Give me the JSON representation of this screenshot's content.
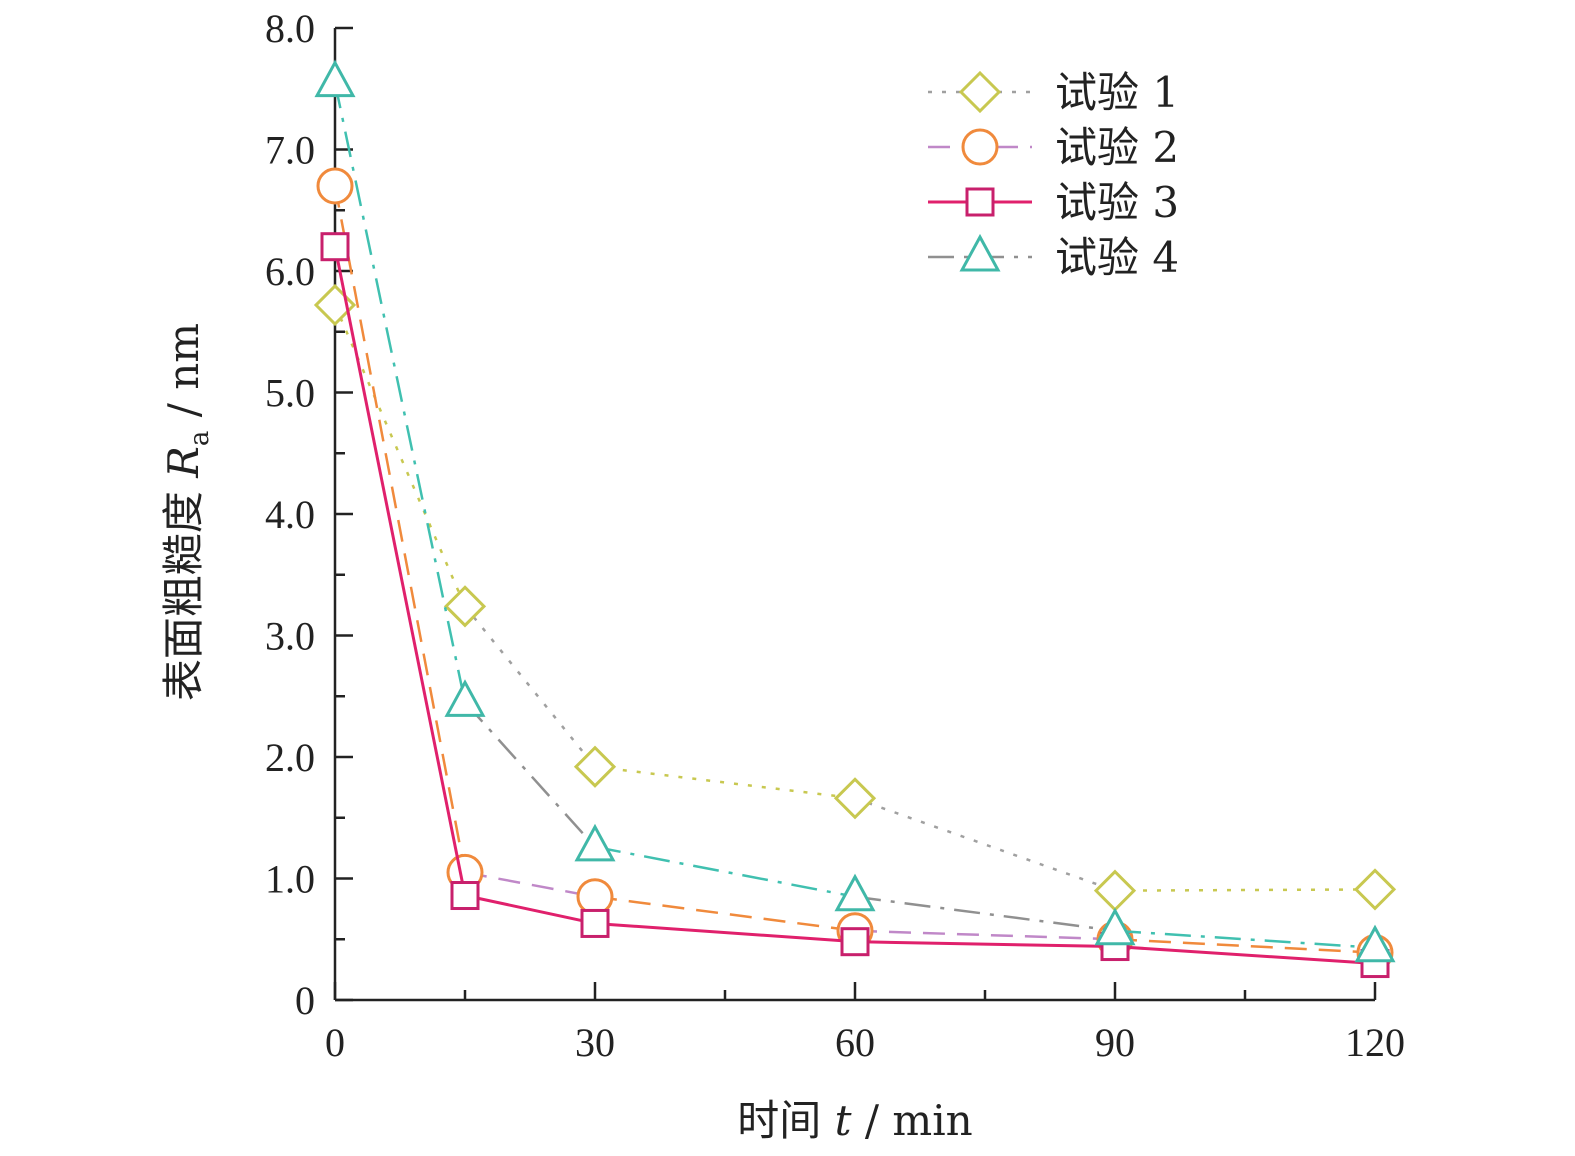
{
  "chart_data": {
    "type": "line",
    "x": [
      0,
      15,
      30,
      60,
      90,
      120
    ],
    "xticks": [
      0,
      30,
      60,
      90,
      120
    ],
    "xtick_labels": [
      "0",
      "30",
      "60",
      "90",
      "120"
    ],
    "yticks": [
      0,
      1,
      2,
      3,
      4,
      5,
      6,
      7,
      8
    ],
    "ytick_labels": [
      "0",
      "1.0",
      "2.0",
      "3.0",
      "4.0",
      "5.0",
      "6.0",
      "7.0",
      "8.0"
    ],
    "xlim": [
      0,
      120
    ],
    "ylim": [
      0,
      8
    ],
    "xlabel": {
      "prefix": "时间 ",
      "var": "t",
      "suffix": " / min"
    },
    "ylabel": {
      "prefix": "表面粗糙度 ",
      "var": "R",
      "sub": "a",
      "suffix": " / nm"
    },
    "legend_position": "top-right",
    "grid": false,
    "series": [
      {
        "name": "试验 1",
        "marker": "diamond",
        "line_style": "dotted",
        "colors": [
          "#c8c850",
          "#a0a0a0"
        ],
        "marker_color": "#c8c850",
        "values": [
          5.72,
          3.24,
          1.92,
          1.66,
          0.9,
          0.91
        ]
      },
      {
        "name": "试验 2",
        "marker": "circle",
        "line_style": "dashed",
        "colors": [
          "#f08a3c",
          "#c088c8"
        ],
        "marker_color": "#f08a3c",
        "values": [
          6.7,
          1.05,
          0.85,
          0.57,
          0.5,
          0.39
        ]
      },
      {
        "name": "试验 3",
        "marker": "square",
        "line_style": "solid",
        "colors": [
          "#e0206c"
        ],
        "marker_color": "#c8206c",
        "values": [
          6.2,
          0.86,
          0.63,
          0.48,
          0.44,
          0.3
        ]
      },
      {
        "name": "试验 4",
        "marker": "triangle",
        "line_style": "dashdot",
        "colors": [
          "#40c0b0",
          "#909090"
        ],
        "marker_color": "#40b8a8",
        "values": [
          7.55,
          2.45,
          1.26,
          0.85,
          0.57,
          0.43
        ]
      }
    ]
  }
}
